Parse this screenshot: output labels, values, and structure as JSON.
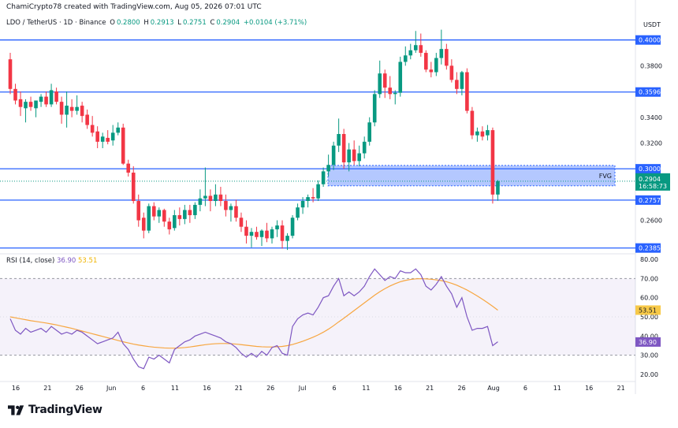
{
  "header": {
    "credit": "ChamiCrypto78 created with TradingView.com, Aug 05, 2026 07:01 UTC",
    "symbol": "LDO / TetherUS · 1D · Binance",
    "open_label": "O",
    "open": "0.2800",
    "high_label": "H",
    "high": "0.2913",
    "low_label": "L",
    "low": "0.2751",
    "close_label": "C",
    "close": "0.2904",
    "change": "+0.0104 (+3.71%)"
  },
  "currency": "USDT",
  "rsi_legend": {
    "label": "RSI (14, close)",
    "rsi": "36.90",
    "ma": "53.51"
  },
  "brand": "TradingView",
  "fvg_label": "FVG",
  "price_axis": {
    "ticks": [
      "0.3800",
      "0.3400",
      "0.3200",
      "0.2600"
    ],
    "levels": [
      {
        "value": 0.4,
        "text": "0.4000"
      },
      {
        "value": 0.3596,
        "text": "0.3596"
      },
      {
        "value": 0.3,
        "text": "0.3000"
      },
      {
        "value": 0.2757,
        "text": "0.2757"
      },
      {
        "value": 0.2385,
        "text": "0.2385"
      }
    ],
    "last_price": "0.2904",
    "countdown": "16:58:73"
  },
  "rsi_axis": {
    "ticks": [
      "80.00",
      "70.00",
      "60.00",
      "50.00",
      "40.00",
      "30.00",
      "20.00"
    ],
    "rsi_value": "36.90",
    "ma_value": "53.51"
  },
  "time_axis": [
    "16",
    "21",
    "26",
    "Jun",
    "6",
    "11",
    "16",
    "21",
    "26",
    "Jul",
    "6",
    "11",
    "16",
    "21",
    "26",
    "Aug",
    "6",
    "11",
    "16",
    "21"
  ],
  "colors": {
    "up": "#089981",
    "down": "#f23645",
    "level": "#2962ff",
    "rsi": "#7e57c2",
    "rsi_ma": "#f7a640"
  },
  "chart_data": {
    "type": "candlestick",
    "y_range": [
      0.234,
      0.409
    ],
    "rsi_range": [
      20,
      80
    ],
    "rsi_band": [
      30,
      70
    ],
    "fvg_zone": [
      0.2868,
      0.3026
    ],
    "candles": [
      [
        0.385,
        0.39,
        0.358,
        0.362
      ],
      [
        0.362,
        0.366,
        0.35,
        0.353
      ],
      [
        0.354,
        0.36,
        0.341,
        0.348
      ],
      [
        0.347,
        0.354,
        0.336,
        0.352
      ],
      [
        0.352,
        0.356,
        0.345,
        0.348
      ],
      [
        0.347,
        0.353,
        0.34,
        0.353
      ],
      [
        0.352,
        0.358,
        0.348,
        0.356
      ],
      [
        0.356,
        0.36,
        0.348,
        0.35
      ],
      [
        0.35,
        0.366,
        0.348,
        0.361
      ],
      [
        0.36,
        0.363,
        0.35,
        0.352
      ],
      [
        0.352,
        0.356,
        0.335,
        0.342
      ],
      [
        0.342,
        0.36,
        0.332,
        0.349
      ],
      [
        0.348,
        0.354,
        0.34,
        0.345
      ],
      [
        0.345,
        0.357,
        0.342,
        0.348
      ],
      [
        0.349,
        0.352,
        0.336,
        0.341
      ],
      [
        0.342,
        0.346,
        0.331,
        0.334
      ],
      [
        0.334,
        0.341,
        0.325,
        0.328
      ],
      [
        0.329,
        0.333,
        0.316,
        0.321
      ],
      [
        0.321,
        0.328,
        0.316,
        0.325
      ],
      [
        0.324,
        0.33,
        0.319,
        0.321
      ],
      [
        0.322,
        0.334,
        0.318,
        0.328
      ],
      [
        0.328,
        0.336,
        0.326,
        0.332
      ],
      [
        0.332,
        0.335,
        0.303,
        0.304
      ],
      [
        0.304,
        0.307,
        0.294,
        0.297
      ],
      [
        0.297,
        0.302,
        0.273,
        0.275
      ],
      [
        0.275,
        0.28,
        0.255,
        0.26
      ],
      [
        0.262,
        0.266,
        0.246,
        0.252
      ],
      [
        0.252,
        0.273,
        0.25,
        0.271
      ],
      [
        0.271,
        0.274,
        0.26,
        0.263
      ],
      [
        0.263,
        0.27,
        0.258,
        0.268
      ],
      [
        0.268,
        0.269,
        0.255,
        0.259
      ],
      [
        0.259,
        0.262,
        0.249,
        0.253
      ],
      [
        0.254,
        0.268,
        0.252,
        0.264
      ],
      [
        0.264,
        0.27,
        0.256,
        0.261
      ],
      [
        0.261,
        0.272,
        0.257,
        0.268
      ],
      [
        0.268,
        0.272,
        0.258,
        0.264
      ],
      [
        0.264,
        0.274,
        0.261,
        0.272
      ],
      [
        0.272,
        0.284,
        0.267,
        0.277
      ],
      [
        0.277,
        0.301,
        0.271,
        0.279
      ],
      [
        0.279,
        0.284,
        0.267,
        0.275
      ],
      [
        0.275,
        0.288,
        0.271,
        0.28
      ],
      [
        0.28,
        0.286,
        0.271,
        0.275
      ],
      [
        0.275,
        0.28,
        0.263,
        0.268
      ],
      [
        0.268,
        0.273,
        0.259,
        0.271
      ],
      [
        0.271,
        0.276,
        0.259,
        0.262
      ],
      [
        0.262,
        0.266,
        0.251,
        0.255
      ],
      [
        0.255,
        0.26,
        0.242,
        0.248
      ],
      [
        0.248,
        0.254,
        0.239,
        0.251
      ],
      [
        0.251,
        0.255,
        0.245,
        0.247
      ],
      [
        0.247,
        0.253,
        0.24,
        0.252
      ],
      [
        0.252,
        0.258,
        0.243,
        0.246
      ],
      [
        0.246,
        0.255,
        0.242,
        0.253
      ],
      [
        0.253,
        0.26,
        0.247,
        0.256
      ],
      [
        0.256,
        0.26,
        0.238,
        0.244
      ],
      [
        0.244,
        0.25,
        0.237,
        0.248
      ],
      [
        0.248,
        0.264,
        0.246,
        0.262
      ],
      [
        0.262,
        0.273,
        0.26,
        0.27
      ],
      [
        0.27,
        0.278,
        0.265,
        0.275
      ],
      [
        0.275,
        0.28,
        0.27,
        0.278
      ],
      [
        0.278,
        0.285,
        0.274,
        0.277
      ],
      [
        0.277,
        0.291,
        0.275,
        0.288
      ],
      [
        0.288,
        0.301,
        0.286,
        0.298
      ],
      [
        0.298,
        0.311,
        0.294,
        0.303
      ],
      [
        0.303,
        0.321,
        0.299,
        0.318
      ],
      [
        0.318,
        0.339,
        0.313,
        0.327
      ],
      [
        0.327,
        0.331,
        0.3,
        0.305
      ],
      [
        0.305,
        0.32,
        0.298,
        0.315
      ],
      [
        0.315,
        0.322,
        0.303,
        0.306
      ],
      [
        0.306,
        0.318,
        0.302,
        0.312
      ],
      [
        0.312,
        0.325,
        0.308,
        0.321
      ],
      [
        0.321,
        0.34,
        0.318,
        0.336
      ],
      [
        0.336,
        0.361,
        0.333,
        0.358
      ],
      [
        0.358,
        0.384,
        0.355,
        0.374
      ],
      [
        0.374,
        0.377,
        0.355,
        0.363
      ],
      [
        0.363,
        0.372,
        0.354,
        0.358
      ],
      [
        0.358,
        0.361,
        0.35,
        0.359
      ],
      [
        0.359,
        0.387,
        0.356,
        0.383
      ],
      [
        0.383,
        0.395,
        0.38,
        0.388
      ],
      [
        0.388,
        0.397,
        0.385,
        0.392
      ],
      [
        0.392,
        0.407,
        0.39,
        0.396
      ],
      [
        0.396,
        0.405,
        0.387,
        0.39
      ],
      [
        0.39,
        0.392,
        0.375,
        0.377
      ],
      [
        0.377,
        0.383,
        0.371,
        0.375
      ],
      [
        0.375,
        0.39,
        0.372,
        0.386
      ],
      [
        0.386,
        0.408,
        0.381,
        0.393
      ],
      [
        0.393,
        0.397,
        0.377,
        0.38
      ],
      [
        0.38,
        0.385,
        0.367,
        0.369
      ],
      [
        0.369,
        0.375,
        0.358,
        0.362
      ],
      [
        0.362,
        0.376,
        0.357,
        0.375
      ],
      [
        0.375,
        0.378,
        0.343,
        0.345
      ],
      [
        0.345,
        0.348,
        0.323,
        0.326
      ],
      [
        0.326,
        0.332,
        0.321,
        0.329
      ],
      [
        0.329,
        0.333,
        0.322,
        0.325
      ],
      [
        0.326,
        0.334,
        0.322,
        0.33
      ],
      [
        0.33,
        0.332,
        0.273,
        0.28
      ],
      [
        0.28,
        0.2913,
        0.2751,
        0.2904
      ]
    ],
    "rsi": [
      49,
      43,
      41,
      44,
      42,
      43,
      44,
      42,
      45,
      43,
      41,
      42,
      41,
      43,
      42,
      40,
      38,
      36,
      37,
      38,
      39,
      42,
      36,
      33,
      28,
      24,
      23,
      29,
      28,
      30,
      28,
      26,
      33,
      35,
      37,
      38,
      40,
      41,
      42,
      41,
      40,
      39,
      37,
      36,
      34,
      31,
      29,
      31,
      29,
      32,
      30,
      34,
      35,
      31,
      30,
      45,
      49,
      51,
      52,
      51,
      55,
      60,
      61,
      66,
      70,
      61,
      63,
      61,
      63,
      66,
      71,
      75,
      72,
      69,
      71,
      70,
      74,
      73,
      73,
      75,
      72,
      66,
      64,
      67,
      71,
      66,
      62,
      55,
      60,
      50,
      43,
      44,
      44,
      45,
      35,
      37
    ],
    "rsi_ma": [
      50,
      49.5,
      49,
      48.5,
      48,
      47.6,
      47.2,
      46.8,
      46.3,
      45.8,
      45.2,
      44.6,
      44,
      43.3,
      42.6,
      41.9,
      41.2,
      40.5,
      39.8,
      39.1,
      38.4,
      37.7,
      37,
      36.4,
      35.8,
      35.3,
      34.9,
      34.5,
      34.2,
      34,
      33.8,
      33.7,
      33.7,
      33.8,
      34,
      34.3,
      34.7,
      35.1,
      35.5,
      35.8,
      36,
      36.1,
      36.1,
      36,
      35.8,
      35.5,
      35.2,
      34.9,
      34.6,
      34.4,
      34.3,
      34.3,
      34.4,
      34.6,
      35,
      35.6,
      36.4,
      37.3,
      38.3,
      39.4,
      40.6,
      42,
      43.6,
      45.4,
      47.4,
      49.3,
      51.3,
      53.3,
      55.3,
      57.3,
      59.3,
      61.3,
      63.1,
      64.7,
      66.1,
      67.3,
      68.3,
      69,
      69.5,
      69.8,
      69.9,
      69.8,
      69.6,
      69.3,
      68.9,
      68.3,
      67.5,
      66.5,
      65.3,
      64,
      62.5,
      60.9,
      59.2,
      57.4,
      55.5,
      53.51
    ]
  }
}
